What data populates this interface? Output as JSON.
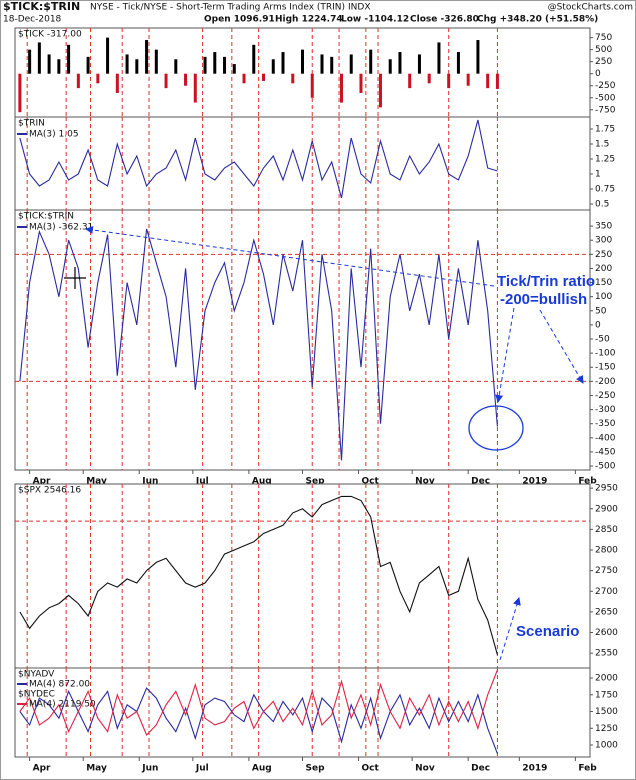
{
  "header": {
    "title": "$TICK:$TRIN",
    "description": "NYSE - Tick/NYSE - Short-Term Trading Arms Index (TRIN)",
    "exchange": "INDX",
    "source": "@StockCharts.com",
    "date": "18-Dec-2018",
    "quote": [
      "Open 1096.91",
      "High 1224.74",
      "Low -1104.12",
      "Close -326.80",
      "Chg +348.20 (+51.58%)"
    ]
  },
  "chart_data": [
    {
      "type": "bar",
      "title": "$TICK -317.00",
      "up_color": "#000000",
      "down_color": "#cc1122",
      "x": [
        2,
        6,
        10,
        14,
        18,
        22,
        26,
        30,
        34,
        38,
        42,
        46,
        50,
        54,
        58,
        62,
        66,
        70,
        74,
        78,
        82,
        86,
        90,
        94,
        98,
        102,
        106,
        110,
        114,
        118,
        122,
        126,
        130,
        134,
        138,
        142,
        146,
        150,
        154,
        158,
        162,
        166,
        170,
        174,
        178,
        182,
        186,
        190,
        194,
        198
      ],
      "values": [
        -800,
        500,
        650,
        400,
        300,
        600,
        -300,
        350,
        -200,
        750,
        -400,
        400,
        300,
        700,
        500,
        -300,
        300,
        -250,
        -600,
        350,
        450,
        350,
        200,
        -200,
        600,
        -150,
        300,
        450,
        -200,
        500,
        -500,
        400,
        350,
        -600,
        400,
        -400,
        500,
        -700,
        300,
        450,
        -300,
        400,
        -200,
        650,
        -300,
        450,
        -250,
        700,
        -300,
        -317
      ],
      "xlim": [
        0,
        236
      ],
      "ylim": [
        -900,
        950
      ],
      "yticks": [
        750,
        500,
        250,
        0,
        -250,
        -500,
        -750
      ],
      "vlines": [
        5,
        21,
        31,
        44,
        55,
        77,
        89,
        100,
        122,
        133,
        144,
        149,
        178,
        198
      ]
    },
    {
      "type": "line",
      "title": "$TRIN",
      "x": [
        2,
        6,
        10,
        14,
        18,
        22,
        26,
        30,
        34,
        38,
        42,
        46,
        50,
        54,
        58,
        62,
        66,
        70,
        74,
        78,
        82,
        86,
        90,
        94,
        98,
        102,
        106,
        110,
        114,
        118,
        122,
        126,
        130,
        134,
        138,
        142,
        146,
        150,
        154,
        158,
        162,
        166,
        170,
        174,
        178,
        182,
        186,
        190,
        194,
        198
      ],
      "series": [
        {
          "name": "MA(3) 1.05",
          "color": "#2a2aa0",
          "values": [
            1.6,
            1.0,
            0.8,
            0.9,
            1.2,
            0.9,
            1.0,
            1.4,
            0.9,
            0.8,
            1.5,
            1.0,
            1.3,
            0.8,
            1.0,
            1.1,
            1.4,
            0.9,
            1.6,
            1.0,
            0.9,
            1.1,
            1.2,
            1.0,
            0.8,
            1.1,
            1.3,
            0.9,
            1.4,
            0.9,
            1.55,
            0.9,
            1.2,
            0.6,
            1.6,
            1.0,
            0.85,
            1.55,
            1.0,
            0.9,
            1.3,
            1.0,
            1.2,
            1.5,
            1.0,
            0.9,
            1.3,
            1.9,
            1.1,
            1.05
          ]
        }
      ],
      "xlim": [
        0,
        236
      ],
      "ylim": [
        0.4,
        1.95
      ],
      "yticks": [
        1.75,
        1.5,
        1.25,
        1,
        0.75,
        0.5
      ]
    },
    {
      "type": "line",
      "title": "$TICK:$TRIN",
      "x": [
        2,
        6,
        10,
        14,
        18,
        22,
        26,
        30,
        34,
        38,
        42,
        46,
        50,
        54,
        58,
        62,
        66,
        70,
        74,
        78,
        82,
        86,
        90,
        94,
        98,
        102,
        106,
        110,
        114,
        118,
        122,
        126,
        130,
        134,
        138,
        142,
        146,
        150,
        154,
        158,
        162,
        166,
        170,
        174,
        178,
        182,
        186,
        190,
        194,
        198
      ],
      "series": [
        {
          "name": "MA(3) -362.31",
          "color": "#2a2aa0",
          "values": [
            -200,
            150,
            330,
            250,
            100,
            300,
            200,
            -80,
            150,
            320,
            -180,
            150,
            0,
            340,
            220,
            100,
            -150,
            200,
            -230,
            50,
            150,
            220,
            50,
            150,
            300,
            180,
            0,
            250,
            120,
            300,
            -220,
            250,
            50,
            -480,
            200,
            -150,
            270,
            -350,
            100,
            250,
            50,
            180,
            0,
            250,
            -50,
            200,
            0,
            300,
            50,
            -360
          ]
        }
      ],
      "xlim": [
        0,
        236
      ],
      "ylim": [
        -514,
        407
      ],
      "yticks": [
        350,
        300,
        250,
        200,
        150,
        100,
        50,
        0,
        -50,
        -100,
        -150,
        -200,
        -250,
        -300,
        -350,
        -400,
        -450,
        -500
      ],
      "xticks": [
        {
          "value": 6,
          "label": "Apr"
        },
        {
          "value": 28,
          "label": "May"
        },
        {
          "value": 51,
          "label": "Jun"
        },
        {
          "value": 73,
          "label": "Jul"
        },
        {
          "value": 96,
          "label": "Aug"
        },
        {
          "value": 118,
          "label": "Sep"
        },
        {
          "value": 141,
          "label": "Oct"
        },
        {
          "value": 163,
          "label": "Nov"
        },
        {
          "value": 186,
          "label": "Dec"
        },
        {
          "value": 207,
          "label": "2019"
        },
        {
          "value": 230,
          "label": "Feb"
        }
      ],
      "ref_lines": [
        250,
        -200
      ],
      "annotations": [
        "Tick/Trin ratio",
        "-200=bullish"
      ]
    },
    {
      "type": "line",
      "title": "$SPX 2546.16",
      "x": [
        2,
        6,
        10,
        14,
        18,
        22,
        26,
        30,
        34,
        38,
        42,
        46,
        50,
        54,
        58,
        62,
        66,
        70,
        74,
        78,
        82,
        86,
        90,
        94,
        98,
        102,
        106,
        110,
        114,
        118,
        122,
        126,
        130,
        134,
        138,
        142,
        146,
        150,
        154,
        158,
        162,
        166,
        170,
        174,
        178,
        182,
        186,
        190,
        194,
        198
      ],
      "series": [
        {
          "color": "#111111",
          "values": [
            2650,
            2610,
            2640,
            2660,
            2670,
            2690,
            2670,
            2640,
            2700,
            2720,
            2710,
            2730,
            2720,
            2750,
            2770,
            2780,
            2750,
            2720,
            2710,
            2720,
            2750,
            2790,
            2800,
            2810,
            2820,
            2840,
            2850,
            2860,
            2890,
            2900,
            2880,
            2910,
            2920,
            2930,
            2930,
            2920,
            2880,
            2760,
            2770,
            2700,
            2650,
            2720,
            2740,
            2760,
            2690,
            2700,
            2780,
            2680,
            2630,
            2546.16
          ]
        }
      ],
      "xlim": [
        0,
        236
      ],
      "ylim": [
        2514,
        2960
      ],
      "yticks": [
        2950,
        2900,
        2850,
        2800,
        2750,
        2700,
        2650,
        2600,
        2550
      ],
      "ref_lines": [
        2870
      ],
      "annotations": [
        "Scenario"
      ]
    },
    {
      "type": "line",
      "x": [
        2,
        6,
        10,
        14,
        18,
        22,
        26,
        30,
        34,
        38,
        42,
        46,
        50,
        54,
        58,
        62,
        66,
        70,
        74,
        78,
        82,
        86,
        90,
        94,
        98,
        102,
        106,
        110,
        114,
        118,
        122,
        126,
        130,
        134,
        138,
        142,
        146,
        150,
        154,
        158,
        162,
        166,
        170,
        174,
        178,
        182,
        186,
        190,
        194,
        198
      ],
      "series": [
        {
          "label": "$NYADV",
          "name": "MA(4) 872.00",
          "color": "#2a2aa0",
          "values": [
            1500,
            1300,
            1700,
            1600,
            1400,
            1800,
            1500,
            1200,
            1600,
            1800,
            1250,
            1600,
            1500,
            1850,
            1700,
            1400,
            1200,
            1550,
            1100,
            1600,
            1700,
            1650,
            1450,
            1350,
            1750,
            1500,
            1350,
            1650,
            1450,
            1700,
            1200,
            1700,
            1550,
            1050,
            1600,
            1250,
            1700,
            1100,
            1500,
            1750,
            1300,
            1550,
            1250,
            1700,
            1350,
            1650,
            1350,
            1750,
            1250,
            872
          ]
        },
        {
          "label": "$NYDEC",
          "name": "MA(4) 2119.50",
          "color": "#dd2244",
          "values": [
            1500,
            1700,
            1300,
            1400,
            1600,
            1200,
            1500,
            1800,
            1400,
            1200,
            1750,
            1400,
            1500,
            1150,
            1300,
            1600,
            1800,
            1450,
            1900,
            1400,
            1300,
            1350,
            1550,
            1650,
            1250,
            1500,
            1650,
            1350,
            1550,
            1300,
            1800,
            1300,
            1450,
            1950,
            1400,
            1750,
            1300,
            1900,
            1500,
            1250,
            1700,
            1450,
            1750,
            1300,
            1650,
            1350,
            1650,
            1250,
            1750,
            2119.5
          ]
        }
      ],
      "xlim": [
        0,
        236
      ],
      "ylim": [
        821,
        2150
      ],
      "yticks": [
        2000,
        1750,
        1500,
        1250,
        1000
      ],
      "xticks": [
        {
          "value": 6,
          "label": "Apr"
        },
        {
          "value": 28,
          "label": "May"
        },
        {
          "value": 51,
          "label": "Jun"
        },
        {
          "value": 73,
          "label": "Jul"
        },
        {
          "value": 96,
          "label": "Aug"
        },
        {
          "value": 118,
          "label": "Sep"
        },
        {
          "value": 141,
          "label": "Oct"
        },
        {
          "value": 163,
          "label": "Nov"
        },
        {
          "value": 186,
          "label": "Dec"
        },
        {
          "value": 207,
          "label": "2019"
        },
        {
          "value": 230,
          "label": "Feb"
        }
      ]
    }
  ]
}
